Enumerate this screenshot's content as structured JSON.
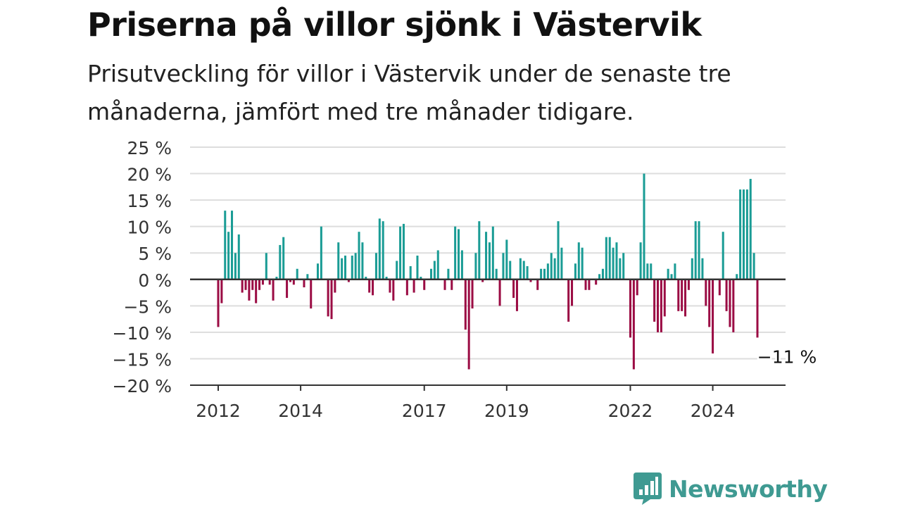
{
  "header": {
    "title": "Priserna på villor sjönk i Västervik",
    "subtitle": "Prisutveckling för villor i Västervik under de senaste tre månaderna, jämfört med tre månader tidigare."
  },
  "logo": {
    "name": "Newsworthy",
    "icon": "newsworthy-bar-chart-icon"
  },
  "colors": {
    "positive": "#1a9c95",
    "negative": "#9b0c44",
    "zero_line": "#333333",
    "grid": "#dddddd"
  },
  "chart_data": {
    "type": "bar",
    "title": "Priserna på villor sjönk i Västervik",
    "ylabel": "",
    "xlabel": "",
    "ylim": [
      -20,
      25
    ],
    "yticks": [
      {
        "value": 25,
        "label": "25 %"
      },
      {
        "value": 20,
        "label": "20 %"
      },
      {
        "value": 15,
        "label": "15 %"
      },
      {
        "value": 10,
        "label": "10 %"
      },
      {
        "value": 5,
        "label": "5 %"
      },
      {
        "value": 0,
        "label": "0 %"
      },
      {
        "value": -5,
        "label": "−5 %"
      },
      {
        "value": -10,
        "label": "−10 %"
      },
      {
        "value": -15,
        "label": "−15 %"
      },
      {
        "value": -20,
        "label": "−20 %"
      }
    ],
    "xticks": [
      {
        "year": 2012,
        "label": "2012"
      },
      {
        "year": 2014,
        "label": "2014"
      },
      {
        "year": 2017,
        "label": "2017"
      },
      {
        "year": 2019,
        "label": "2019"
      },
      {
        "year": 2022,
        "label": "2022"
      },
      {
        "year": 2024,
        "label": "2024"
      }
    ],
    "start": "2012-01",
    "end": "2025-01",
    "values": [
      -9,
      -4.5,
      13,
      9,
      13,
      5,
      8.5,
      -2.5,
      -2,
      -4,
      -2,
      -4.5,
      -2,
      -1,
      5,
      -1,
      -4,
      0.5,
      6.5,
      8,
      -3.5,
      -0.5,
      -1,
      2,
      0,
      -1.5,
      1,
      -5.5,
      0,
      3,
      10,
      0,
      -7,
      -7.5,
      -2.5,
      7,
      4,
      4.5,
      -0.5,
      4.5,
      5,
      9,
      7,
      0.5,
      -2.5,
      -3,
      5,
      11.5,
      11,
      0.5,
      -2.5,
      -4,
      3.5,
      10,
      10.5,
      -3,
      2.5,
      -2.5,
      4.5,
      0.5,
      -2,
      0,
      2,
      3.5,
      5.5,
      0,
      -2,
      2,
      -2,
      10,
      9.5,
      5.5,
      -9.5,
      -17,
      -5.5,
      5,
      11,
      -0.5,
      9,
      7,
      10,
      2,
      -5,
      5,
      7.5,
      3.5,
      -3.5,
      -6,
      4,
      3.5,
      2.5,
      -0.5,
      0,
      -2,
      2,
      2,
      3,
      5,
      4,
      11,
      6,
      0,
      -8,
      -5,
      3,
      7,
      6,
      -2,
      -2,
      0,
      -1,
      1,
      2,
      8,
      8,
      6,
      7,
      4,
      5,
      0,
      -11,
      -17,
      -3,
      7,
      20,
      3,
      3,
      -8,
      -10,
      -10,
      -7,
      2,
      1,
      3,
      -6,
      -6,
      -7,
      -2,
      4,
      11,
      11,
      4,
      -5,
      -9,
      -14,
      0,
      -3,
      9,
      -6,
      -9,
      -10,
      1,
      17,
      17,
      17,
      19,
      5,
      -11
    ],
    "annotation": {
      "label": "−11 %",
      "index": "last"
    }
  }
}
